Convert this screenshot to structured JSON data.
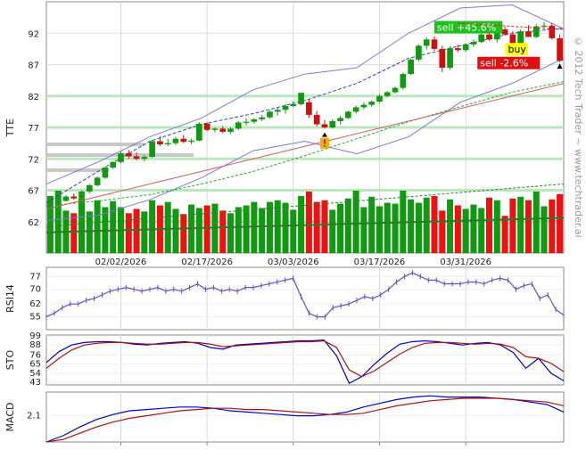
{
  "watermark": "© 2012 Tech Trader ~ www.techtrader.ai",
  "chart_data": [
    {
      "type": "candlestick",
      "ylabel": "TTE",
      "ylim": [
        57,
        97
      ],
      "yticks": [
        62,
        67,
        72,
        77,
        82,
        87,
        92
      ],
      "xticks": [
        "02/02/2026",
        "02/17/2026",
        "03/03/2026",
        "03/17/2026",
        "03/31/2026"
      ],
      "xtick_index": [
        9,
        20,
        31,
        42,
        53
      ],
      "candles": [
        [
          64.5,
          65.0,
          64.0,
          64.8
        ],
        [
          64.8,
          65.4,
          64.6,
          65.3
        ],
        [
          65.3,
          66.2,
          65.2,
          66.0
        ],
        [
          66.0,
          66.5,
          65.5,
          65.7
        ],
        [
          65.7,
          67.0,
          65.6,
          66.8
        ],
        [
          66.8,
          68.0,
          66.5,
          67.8
        ],
        [
          67.8,
          69.2,
          67.6,
          69.0
        ],
        [
          69.0,
          70.8,
          68.8,
          70.6
        ],
        [
          70.6,
          71.6,
          70.4,
          71.5
        ],
        [
          71.5,
          73.2,
          71.3,
          72.9
        ],
        [
          72.9,
          73.4,
          72.0,
          72.4
        ],
        [
          72.4,
          73.0,
          71.8,
          72.0
        ],
        [
          72.0,
          72.6,
          71.6,
          72.3
        ],
        [
          72.3,
          75.0,
          72.2,
          74.8
        ],
        [
          74.8,
          75.6,
          74.0,
          74.3
        ],
        [
          74.3,
          75.2,
          74.0,
          74.5
        ],
        [
          74.5,
          75.5,
          74.2,
          75.2
        ],
        [
          75.2,
          75.8,
          74.5,
          74.7
        ],
        [
          74.7,
          75.2,
          74.3,
          74.9
        ],
        [
          74.9,
          77.8,
          74.8,
          77.6
        ],
        [
          77.6,
          77.8,
          76.4,
          76.6
        ],
        [
          76.6,
          77.0,
          76.2,
          76.8
        ],
        [
          76.8,
          77.2,
          76.1,
          76.3
        ],
        [
          76.3,
          77.0,
          76.0,
          76.8
        ],
        [
          76.8,
          78.0,
          76.6,
          77.8
        ],
        [
          77.8,
          78.4,
          77.3,
          77.9
        ],
        [
          77.9,
          78.5,
          77.6,
          78.3
        ],
        [
          78.3,
          79.0,
          78.0,
          78.6
        ],
        [
          78.6,
          79.7,
          78.4,
          79.5
        ],
        [
          79.5,
          80.2,
          78.9,
          79.8
        ],
        [
          79.8,
          80.7,
          79.2,
          80.4
        ],
        [
          80.4,
          81.2,
          80.2,
          80.7
        ],
        [
          80.7,
          82.6,
          80.5,
          82.5
        ],
        [
          81.0,
          81.5,
          78.5,
          79.0
        ],
        [
          79.0,
          79.6,
          77.2,
          77.5
        ],
        [
          77.5,
          78.2,
          76.8,
          77.0
        ],
        [
          77.0,
          78.3,
          76.8,
          78.0
        ],
        [
          78.0,
          78.8,
          77.5,
          78.5
        ],
        [
          78.5,
          79.7,
          78.3,
          79.5
        ],
        [
          79.5,
          80.5,
          79.2,
          80.2
        ],
        [
          80.2,
          81.0,
          79.9,
          80.6
        ],
        [
          80.6,
          81.3,
          80.3,
          81.1
        ],
        [
          81.1,
          82.3,
          80.9,
          82.0
        ],
        [
          82.0,
          82.8,
          81.8,
          82.6
        ],
        [
          82.6,
          83.5,
          82.4,
          83.3
        ],
        [
          83.3,
          85.7,
          83.0,
          85.5
        ],
        [
          85.5,
          88.0,
          85.3,
          87.8
        ],
        [
          87.8,
          90.2,
          87.5,
          90.0
        ],
        [
          90.0,
          91.3,
          89.4,
          91.0
        ],
        [
          91.0,
          91.5,
          89.2,
          89.5
        ],
        [
          89.5,
          90.0,
          85.8,
          86.5
        ],
        [
          86.5,
          89.9,
          86.2,
          89.6
        ],
        [
          89.6,
          90.2,
          89.0,
          89.3
        ],
        [
          89.3,
          90.4,
          89.0,
          90.2
        ],
        [
          90.2,
          91.0,
          89.8,
          90.6
        ],
        [
          90.6,
          92.1,
          90.4,
          91.8
        ],
        [
          91.8,
          92.7,
          90.8,
          91.0
        ],
        [
          91.0,
          92.8,
          90.5,
          92.6
        ],
        [
          92.6,
          93.0,
          91.6,
          91.8
        ],
        [
          91.8,
          92.3,
          89.7,
          90.0
        ],
        [
          90.0,
          92.6,
          89.7,
          92.3
        ],
        [
          92.3,
          93.3,
          91.5,
          91.4
        ],
        [
          91.4,
          93.4,
          91.2,
          93.1
        ],
        [
          93.1,
          93.8,
          92.7,
          93.2
        ],
        [
          93.2,
          93.6,
          91.0,
          91.2
        ],
        [
          91.2,
          91.8,
          87.4,
          87.6
        ]
      ],
      "volume": [
        66,
        72,
        49,
        46,
        63,
        48,
        61,
        53,
        60,
        53,
        46,
        51,
        48,
        61,
        55,
        59,
        51,
        45,
        56,
        52,
        55,
        57,
        49,
        46,
        53,
        55,
        59,
        52,
        59,
        61,
        58,
        50,
        66,
        71,
        59,
        61,
        50,
        57,
        63,
        72,
        53,
        65,
        54,
        58,
        57,
        72,
        62,
        58,
        64,
        66,
        49,
        62,
        55,
        51,
        56,
        52,
        64,
        61,
        43,
        63,
        65,
        61,
        71,
        54,
        62,
        68
      ],
      "volume_scale": 100000.0,
      "overlays": {
        "sma_short": [
          65.0,
          70.0,
          74.8,
          77.5,
          79.2,
          81.3,
          84.0,
          88.0,
          90.0,
          92.0,
          92.8
        ],
        "sma_long": [
          64.5,
          65.3,
          66.3,
          68.0,
          70.0,
          72.5,
          75.2,
          77.9,
          80.3,
          82.6,
          84.3
        ],
        "bb_upper": [
          68.0,
          71.5,
          75.5,
          78.5,
          83.0,
          85.5,
          86.5,
          92.0,
          96.0,
          96.5,
          92.7
        ],
        "bb_lower": [
          62.2,
          63.0,
          65.5,
          69.0,
          73.3,
          74.8,
          72.8,
          75.5,
          81.0,
          84.0,
          88.0
        ]
      },
      "support_levels": [
        62,
        67,
        72,
        77,
        82
      ],
      "annotations": [
        {
          "text": "sell +45.6%",
          "at_index": 57,
          "price": 92.1,
          "color": "#1ec01e"
        },
        {
          "text": "buy",
          "at_index": 61,
          "price": 88.6,
          "color": "#ffff00"
        },
        {
          "text": "sell -2.6%",
          "at_index": 62,
          "price": 86.4,
          "color": "#dd1111"
        }
      ],
      "markers": [
        {
          "text": "!",
          "at_index": 35,
          "price": 74.5,
          "color": "#ffa500"
        }
      ]
    },
    {
      "type": "line",
      "ylabel": "RSI14",
      "yticks": [
        55,
        62,
        70,
        77
      ],
      "ylim": [
        48,
        82
      ],
      "values": [
        55,
        57,
        60,
        62,
        62,
        64,
        65,
        67,
        69,
        70,
        71,
        70,
        69,
        70,
        71,
        69,
        70,
        69,
        71,
        73,
        70,
        71,
        69,
        70,
        69,
        71,
        71,
        72,
        73,
        74,
        75,
        76,
        66,
        57,
        55,
        55,
        60,
        61,
        62,
        64,
        66,
        65,
        67,
        70,
        74,
        77,
        79,
        77,
        75,
        75,
        73,
        73,
        73,
        74,
        74,
        73,
        75,
        76,
        75,
        70,
        72,
        73,
        65,
        67,
        59,
        56
      ],
      "color": "#5555cc"
    },
    {
      "type": "line",
      "ylabel": "STO",
      "yticks": [
        43,
        54,
        65,
        76,
        88,
        99
      ],
      "ylim": [
        40,
        100
      ],
      "series": [
        {
          "values": [
            67,
            80,
            88,
            91,
            92,
            92,
            91,
            89,
            88,
            90,
            91,
            92,
            90,
            85,
            83,
            88,
            89,
            90,
            91,
            92,
            93,
            93,
            94,
            75,
            42,
            50,
            65,
            78,
            89,
            92,
            93,
            92,
            90,
            88,
            90,
            91,
            88,
            79,
            60,
            72,
            54,
            45
          ],
          "color": "#0000cc"
        },
        {
          "values": [
            60,
            72,
            82,
            88,
            90,
            91,
            91,
            90,
            89,
            89,
            90,
            91,
            91,
            89,
            86,
            87,
            88,
            89,
            90,
            91,
            92,
            92,
            93,
            85,
            58,
            50,
            57,
            67,
            77,
            85,
            90,
            91,
            91,
            90,
            89,
            90,
            89,
            85,
            74,
            72,
            66,
            56
          ],
          "color": "#aa1111"
        }
      ]
    },
    {
      "type": "line",
      "ylabel": "MACD",
      "yticks": [
        2.1
      ],
      "ylim": [
        0,
        4
      ],
      "series": [
        {
          "values": [
            0.0,
            0.5,
            1.2,
            1.8,
            2.2,
            2.5,
            2.6,
            2.7,
            2.8,
            2.8,
            2.7,
            2.5,
            2.4,
            2.3,
            2.2,
            2.1,
            2.1,
            2.2,
            2.4,
            2.8,
            3.1,
            3.4,
            3.6,
            3.7,
            3.6,
            3.6,
            3.6,
            3.5,
            3.4,
            3.2,
            3.0,
            2.4
          ],
          "color": "#0000cc"
        },
        {
          "values": [
            0.0,
            0.2,
            0.7,
            1.2,
            1.6,
            1.9,
            2.1,
            2.3,
            2.5,
            2.6,
            2.7,
            2.7,
            2.6,
            2.6,
            2.5,
            2.4,
            2.3,
            2.2,
            2.2,
            2.3,
            2.6,
            2.9,
            3.1,
            3.3,
            3.4,
            3.5,
            3.5,
            3.5,
            3.4,
            3.3,
            3.2,
            2.9
          ],
          "color": "#aa1111"
        }
      ]
    }
  ]
}
